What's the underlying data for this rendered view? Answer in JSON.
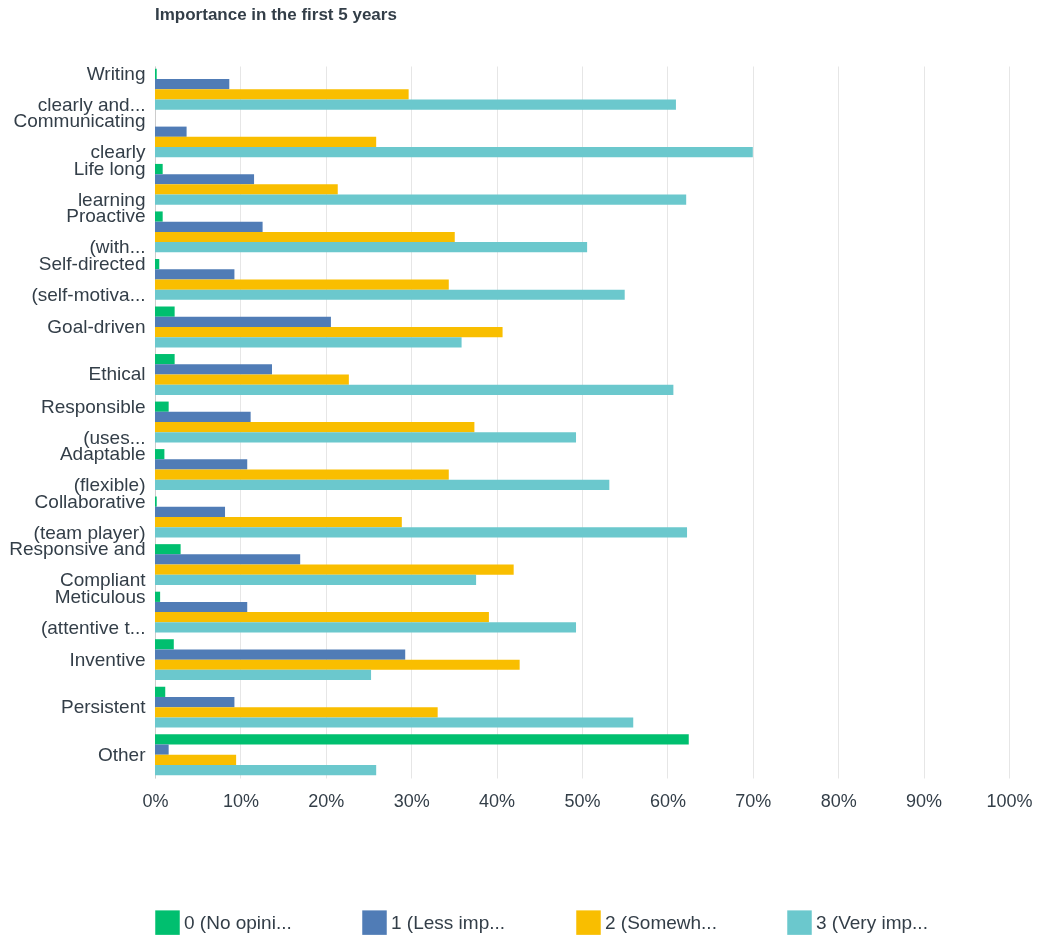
{
  "chart_data": {
    "type": "bar",
    "orientation": "horizontal",
    "title": "Importance in the first 5 years",
    "categories": [
      "Writing clearly and...",
      "Communicating clearly",
      "Life long learning",
      "Proactive (with...",
      "Self-directed (self-motiva...",
      "Goal-driven",
      "Ethical",
      "Responsible (uses...",
      "Adaptable (flexible)",
      "Collaborative (team player)",
      "Responsive and Compliant",
      "Meticulous (attentive t...",
      "Inventive",
      "Persistent",
      "Other"
    ],
    "series": [
      {
        "name": "0 (No opini...",
        "color": "#00bf6f",
        "values": [
          0.2,
          0,
          0.9,
          0.9,
          0.5,
          2.3,
          2.3,
          1.6,
          1.1,
          0.2,
          3.0,
          0.6,
          2.2,
          1.2,
          62.5
        ]
      },
      {
        "name": "1 (Less imp...",
        "color": "#507cb6",
        "values": [
          8.7,
          3.7,
          11.6,
          12.6,
          9.3,
          20.6,
          13.7,
          11.2,
          10.8,
          8.2,
          17.0,
          10.8,
          29.3,
          9.3,
          1.6
        ]
      },
      {
        "name": "2 (Somewh...",
        "color": "#f9be00",
        "values": [
          29.7,
          25.9,
          21.4,
          35.1,
          34.4,
          40.7,
          22.7,
          37.4,
          34.4,
          28.9,
          42.0,
          39.1,
          42.7,
          33.1,
          9.5
        ]
      },
      {
        "name": "3 (Very imp...",
        "color": "#6bc8cd",
        "values": [
          61.0,
          70.0,
          62.2,
          50.6,
          55.0,
          35.9,
          60.7,
          49.3,
          53.2,
          62.3,
          37.6,
          49.3,
          25.3,
          56.0,
          25.9
        ]
      }
    ],
    "xlim": [
      0,
      100
    ],
    "xticks": [
      {
        "value": 0,
        "label": "0%"
      },
      {
        "value": 10,
        "label": "10%"
      },
      {
        "value": 20,
        "label": "20%"
      },
      {
        "value": 30,
        "label": "30%"
      },
      {
        "value": 40,
        "label": "40%"
      },
      {
        "value": 50,
        "label": "50%"
      },
      {
        "value": 60,
        "label": "60%"
      },
      {
        "value": 70,
        "label": "70%"
      },
      {
        "value": 80,
        "label": "80%"
      },
      {
        "value": 90,
        "label": "90%"
      },
      {
        "value": 100,
        "label": "100%"
      }
    ],
    "grid": "x",
    "legend": "bottom"
  }
}
